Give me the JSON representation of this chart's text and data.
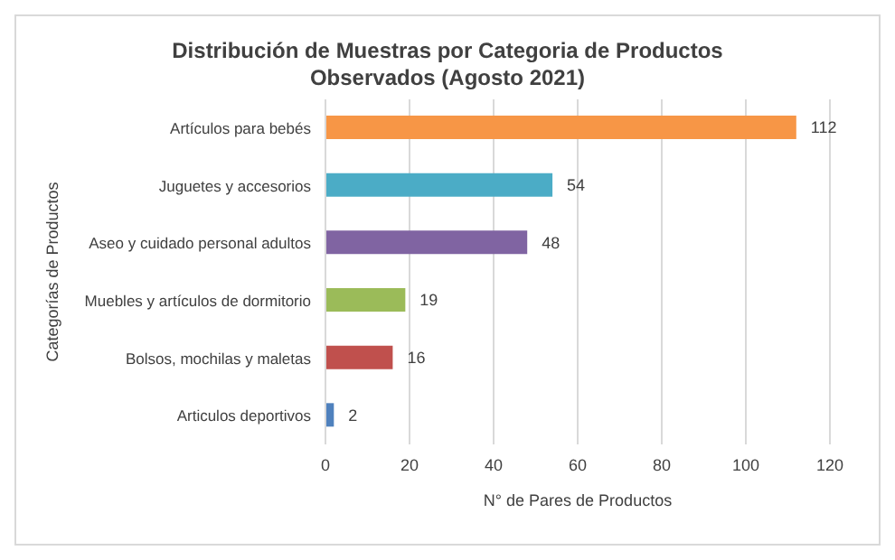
{
  "chart_data": {
    "type": "bar",
    "orientation": "horizontal",
    "title": "Distribución de Muestras por Categoria de Productos Observados (Agosto 2021)",
    "xlabel": "N° de Pares de Productos",
    "ylabel": "Categorías de Productos",
    "categories": [
      "Artículos para bebés",
      "Juguetes y accesorios",
      "Aseo y cuidado personal adultos",
      "Muebles y artículos de dormitorio",
      "Bolsos, mochilas y maletas",
      "Articulos deportivos"
    ],
    "values": [
      112,
      54,
      48,
      19,
      16,
      2
    ],
    "colors": [
      "#f79646",
      "#4bacc6",
      "#8064a2",
      "#9bbb59",
      "#c0504d",
      "#4f81bd"
    ],
    "xlim": [
      0,
      120
    ],
    "xticks": [
      0,
      20,
      40,
      60,
      80,
      100,
      120
    ],
    "grid": "x",
    "data_labels": true,
    "legend": false
  }
}
